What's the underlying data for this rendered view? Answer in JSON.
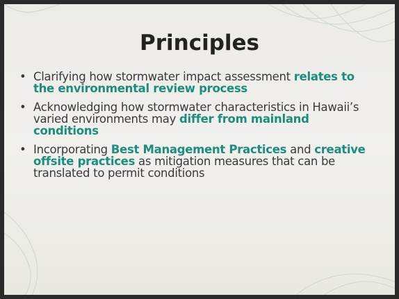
{
  "title": "Principles",
  "bullets": [
    [
      {
        "text": "Clarifying how stormwater impact assessment "
      },
      {
        "text": "relates to the environmental review process",
        "bold": true
      }
    ],
    [
      {
        "text": "Acknowledging how stormwater characteristics in Hawaii’s varied environments may "
      },
      {
        "text": "differ from mainland conditions",
        "bold": true
      }
    ],
    [
      {
        "text": "Incorporating "
      },
      {
        "text": "Best Management Practices",
        "bold": true
      },
      {
        "text": " and "
      },
      {
        "text": "creative offsite practices",
        "bold": true
      },
      {
        "text": " as mitigation measures that can be translated to permit conditions"
      }
    ]
  ],
  "emphasis_color": "#1e8c7e"
}
